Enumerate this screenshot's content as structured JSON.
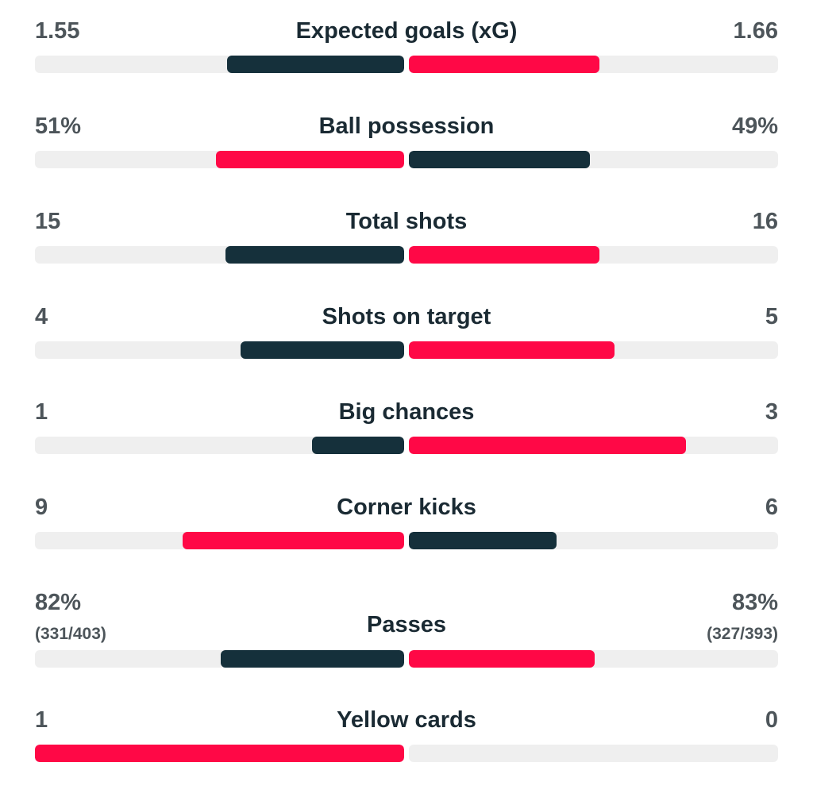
{
  "colors": {
    "dark": "#15303b",
    "red": "#ff0846",
    "track": "#efefef"
  },
  "stats": [
    {
      "label": "Expected goals (xG)",
      "home": "1.55",
      "away": "1.66",
      "home_fill": 0.48,
      "away_fill": 0.516,
      "home_color": "dark",
      "away_color": "red"
    },
    {
      "label": "Ball possession",
      "home": "51%",
      "away": "49%",
      "home_fill": 0.51,
      "away_fill": 0.49,
      "home_color": "red",
      "away_color": "dark"
    },
    {
      "label": "Total shots",
      "home": "15",
      "away": "16",
      "home_fill": 0.484,
      "away_fill": 0.516,
      "home_color": "dark",
      "away_color": "red"
    },
    {
      "label": "Shots on target",
      "home": "4",
      "away": "5",
      "home_fill": 0.444,
      "away_fill": 0.556,
      "home_color": "dark",
      "away_color": "red"
    },
    {
      "label": "Big chances",
      "home": "1",
      "away": "3",
      "home_fill": 0.25,
      "away_fill": 0.75,
      "home_color": "dark",
      "away_color": "red"
    },
    {
      "label": "Corner kicks",
      "home": "9",
      "away": "6",
      "home_fill": 0.6,
      "away_fill": 0.4,
      "home_color": "red",
      "away_color": "dark"
    },
    {
      "label": "Passes",
      "home": "82%",
      "away": "83%",
      "home_sub": "(331/403)",
      "away_sub": "(327/393)",
      "home_fill": 0.497,
      "away_fill": 0.503,
      "home_color": "dark",
      "away_color": "red"
    },
    {
      "label": "Yellow cards",
      "home": "1",
      "away": "0",
      "home_fill": 1.0,
      "away_fill": 0.0,
      "home_color": "red",
      "away_color": "dark"
    }
  ]
}
